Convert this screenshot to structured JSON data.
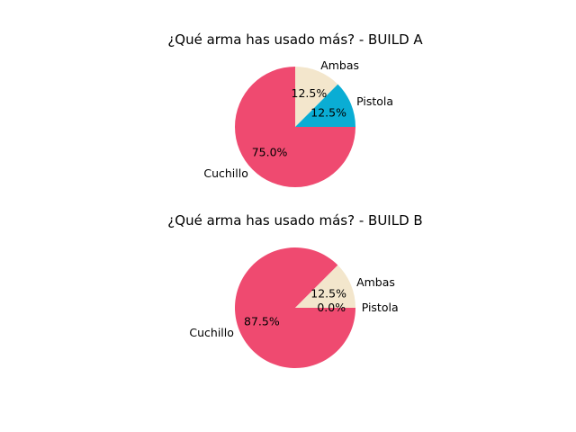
{
  "chart_data": [
    {
      "type": "pie",
      "title": "¿Qué arma has usado más? - BUILD A",
      "categories": [
        "Pistola",
        "Ambas",
        "Cuchillo"
      ],
      "values": [
        12.5,
        12.5,
        75.0
      ],
      "percent_labels": [
        "12.5%",
        "12.5%",
        "75.0%"
      ],
      "colors": [
        "#0aadd4",
        "#f3e6cc",
        "#ef4a70"
      ],
      "start_angle": 0,
      "direction": "counterclockwise"
    },
    {
      "type": "pie",
      "title": "¿Qué arma has usado más? - BUILD B",
      "categories": [
        "Pistola",
        "Ambas",
        "Cuchillo"
      ],
      "values": [
        0.0,
        12.5,
        87.5
      ],
      "percent_labels": [
        "0.0%",
        "12.5%",
        "87.5%"
      ],
      "colors": [
        "#0aadd4",
        "#f3e6cc",
        "#ef4a70"
      ],
      "start_angle": 0,
      "direction": "counterclockwise"
    }
  ]
}
